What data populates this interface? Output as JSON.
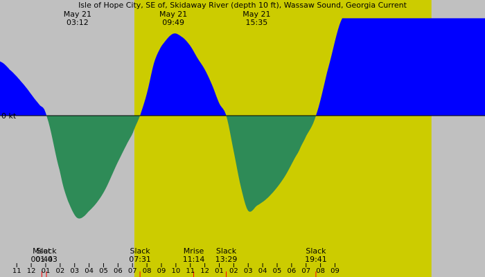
{
  "chart_data": {
    "type": "area",
    "title": "Isle of Hope City, SE of, Skidaway River (depth 10 ft), Wassaw Sound, Georgia Current",
    "ylabel": "0 kt",
    "x_range_hours": [
      -2.16,
      31.37
    ],
    "y_range_kt": [
      -1.0,
      1.0
    ],
    "daylight_hours": [
      7.13,
      27.67
    ],
    "colors": {
      "night": "#c0c0c0",
      "day": "#cccc00",
      "flood": "#0000ff",
      "ebb": "#2e8b57",
      "axis": "#000000",
      "marker_red": "#ff0000"
    },
    "x_tick_labels": [
      {
        "hour": -1,
        "label": "11"
      },
      {
        "hour": 0,
        "label": "12"
      },
      {
        "hour": 1,
        "label": "01"
      },
      {
        "hour": 2,
        "label": "02"
      },
      {
        "hour": 3,
        "label": "03"
      },
      {
        "hour": 4,
        "label": "04"
      },
      {
        "hour": 5,
        "label": "05"
      },
      {
        "hour": 6,
        "label": "06"
      },
      {
        "hour": 7,
        "label": "07"
      },
      {
        "hour": 8,
        "label": "08"
      },
      {
        "hour": 9,
        "label": "09"
      },
      {
        "hour": 10,
        "label": "10"
      },
      {
        "hour": 11,
        "label": "11"
      },
      {
        "hour": 12,
        "label": "12"
      },
      {
        "hour": 13,
        "label": "01"
      },
      {
        "hour": 14,
        "label": "02"
      },
      {
        "hour": 15,
        "label": "03"
      },
      {
        "hour": 16,
        "label": "04"
      },
      {
        "hour": 17,
        "label": "05"
      },
      {
        "hour": 18,
        "label": "06"
      },
      {
        "hour": 19,
        "label": "07"
      },
      {
        "hour": 20,
        "label": "08"
      },
      {
        "hour": 21,
        "label": "09"
      }
    ],
    "top_annotations": [
      {
        "hour": 3.2,
        "date": "May 21",
        "time": "03:12"
      },
      {
        "hour": 9.82,
        "date": "May 21",
        "time": "09:49"
      },
      {
        "hour": 15.58,
        "date": "May 21",
        "time": "15:35"
      }
    ],
    "bottom_events": [
      {
        "hour": 0.73,
        "label": "Mset",
        "time": "00:44"
      },
      {
        "hour": 1.05,
        "label": "Slack",
        "time": "01:03"
      },
      {
        "hour": 7.52,
        "label": "Slack",
        "time": "07:31"
      },
      {
        "hour": 11.23,
        "label": "Mrise",
        "time": "11:14"
      },
      {
        "hour": 13.48,
        "label": "Slack",
        "time": "13:29"
      },
      {
        "hour": 19.68,
        "label": "Slack",
        "time": "19:41"
      }
    ],
    "series": [
      {
        "kind": "current",
        "x_hours": [
          -2.16,
          -1.5,
          -0.5,
          0.5,
          1.05,
          2.0,
          2.5,
          3.2,
          4.0,
          5.0,
          6.0,
          7.0,
          7.52,
          8.0,
          8.5,
          9.0,
          9.82,
          10.5,
          11.0,
          11.5,
          12.0,
          12.5,
          13.0,
          13.48,
          14.0,
          14.5,
          15.0,
          15.58,
          16.5,
          17.5,
          18.5,
          19.0,
          19.68,
          20.5,
          21.5
        ],
        "y_kt": [
          0.53,
          0.45,
          0.3,
          0.12,
          0.0,
          -0.55,
          -0.82,
          -1.0,
          -0.93,
          -0.75,
          -0.45,
          -0.18,
          0.0,
          0.22,
          0.52,
          0.68,
          0.8,
          0.76,
          0.68,
          0.56,
          0.45,
          0.3,
          0.12,
          0.0,
          -0.35,
          -0.7,
          -0.93,
          -0.88,
          -0.78,
          -0.6,
          -0.35,
          -0.2,
          0.0,
          0.45,
          0.95
        ]
      }
    ]
  }
}
